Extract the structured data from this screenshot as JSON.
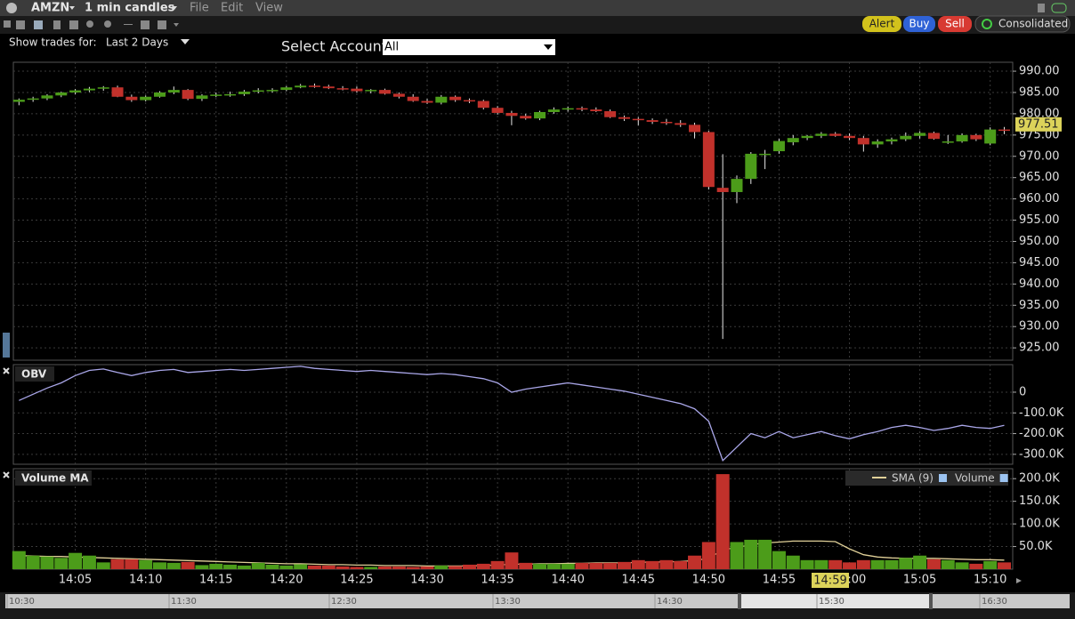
{
  "toolbar": {
    "symbol": "AMZN",
    "interval": "1 min candles",
    "menus": [
      "File",
      "Edit",
      "View"
    ],
    "buttons": [
      "Alert",
      "Buy",
      "Sell",
      "Consolidated"
    ]
  },
  "filters": {
    "show_trades_label": "Show trades for:",
    "show_trades_value": "Last 2 Days",
    "account_label": "Select Account",
    "account_value": "All"
  },
  "crosshair": {
    "time": "14:59"
  },
  "timeline": {
    "labels": [
      "10:30",
      "11:30",
      "12:30",
      "13:30",
      "14:30",
      "15:30",
      "16:30"
    ]
  },
  "chart_data": [
    {
      "type": "candlestick",
      "up_color": "#4c9c1a",
      "down_color": "#c1312b",
      "grid": true,
      "x": [
        841,
        842,
        843,
        844,
        845,
        846,
        847,
        848,
        849,
        850,
        851,
        852,
        853,
        854,
        855,
        856,
        857,
        858,
        859,
        860,
        861,
        862,
        863,
        864,
        865,
        866,
        867,
        868,
        869,
        870,
        871,
        872,
        873,
        874,
        875,
        876,
        877,
        878,
        879,
        880,
        881,
        882,
        883,
        884,
        885,
        886,
        887,
        888,
        889,
        890,
        891,
        892,
        893,
        894,
        895,
        896,
        897,
        898,
        899,
        900,
        901,
        902,
        903,
        904,
        905,
        906,
        907,
        908,
        909,
        910,
        911
      ],
      "open": [
        982.8,
        983.3,
        983.6,
        984.3,
        985.0,
        985.5,
        985.9,
        986.2,
        984.0,
        983.2,
        984.0,
        985.0,
        985.6,
        983.5,
        984.3,
        984.5,
        984.6,
        985.2,
        985.5,
        985.6,
        986.2,
        986.6,
        986.4,
        986.0,
        985.9,
        985.3,
        985.6,
        984.7,
        984.0,
        983.0,
        982.6,
        984.0,
        983.2,
        983.0,
        981.4,
        980.2,
        979.5,
        978.9,
        980.4,
        981.0,
        981.3,
        981.0,
        980.6,
        979.2,
        978.8,
        978.5,
        978.1,
        977.8,
        977.4,
        975.7,
        962.6,
        961.6,
        964.7,
        970.3,
        971.2,
        973.3,
        974.3,
        974.8,
        975.3,
        974.8,
        974.3,
        972.8,
        973.5,
        974.0,
        974.8,
        975.5,
        973.2,
        973.5,
        975.0,
        973.0,
        976.3
      ],
      "high": [
        983.6,
        984.0,
        984.6,
        985.2,
        985.8,
        986.3,
        986.5,
        986.6,
        984.5,
        984.3,
        985.3,
        986.4,
        985.8,
        984.6,
        985.0,
        985.2,
        985.6,
        986.0,
        986.0,
        986.5,
        987.0,
        987.1,
        986.8,
        986.5,
        986.4,
        985.8,
        985.9,
        985.0,
        984.6,
        983.5,
        984.4,
        984.3,
        983.6,
        983.3,
        981.8,
        980.7,
        980.0,
        980.7,
        981.5,
        981.7,
        981.7,
        981.5,
        981.0,
        979.6,
        979.2,
        978.9,
        978.8,
        978.5,
        977.9,
        976.0,
        970.5,
        965.5,
        971.0,
        971.5,
        974.1,
        975.0,
        975.0,
        975.7,
        975.7,
        975.4,
        974.8,
        974.0,
        974.4,
        975.6,
        975.9,
        975.8,
        975.0,
        975.4,
        975.3,
        976.8,
        976.9
      ],
      "low": [
        982.0,
        982.8,
        983.2,
        983.9,
        984.6,
        985.1,
        985.4,
        983.9,
        982.8,
        982.9,
        983.8,
        984.6,
        983.2,
        983.0,
        983.9,
        984.0,
        984.2,
        984.8,
        985.0,
        985.3,
        986.0,
        986.1,
        985.8,
        985.5,
        985.0,
        984.8,
        984.5,
        983.6,
        982.8,
        982.3,
        982.2,
        982.8,
        982.5,
        981.0,
        979.8,
        977.3,
        978.6,
        978.5,
        980.0,
        980.5,
        980.6,
        980.4,
        979.0,
        978.3,
        977.3,
        977.6,
        977.4,
        976.9,
        974.2,
        962.2,
        927.1,
        959.0,
        963.5,
        967.0,
        970.6,
        972.6,
        973.8,
        974.3,
        974.6,
        973.8,
        971.1,
        972.0,
        972.8,
        973.6,
        974.2,
        973.9,
        972.9,
        973.2,
        973.6,
        972.6,
        975.2
      ],
      "close": [
        983.3,
        983.6,
        984.3,
        985.0,
        985.5,
        985.9,
        986.2,
        984.0,
        983.2,
        984.0,
        985.0,
        985.6,
        983.5,
        984.3,
        984.5,
        984.6,
        985.2,
        985.5,
        985.6,
        986.2,
        986.6,
        986.4,
        986.0,
        985.9,
        985.3,
        985.6,
        984.7,
        984.0,
        983.0,
        982.6,
        984.0,
        983.2,
        983.0,
        981.4,
        980.2,
        979.5,
        978.9,
        980.4,
        981.0,
        981.3,
        981.0,
        980.6,
        979.2,
        978.8,
        978.5,
        978.1,
        977.8,
        977.4,
        975.7,
        962.8,
        961.6,
        964.7,
        970.6,
        970.6,
        973.6,
        974.3,
        974.8,
        975.3,
        974.8,
        974.3,
        972.8,
        973.5,
        974.0,
        974.8,
        975.5,
        974.1,
        973.5,
        975.0,
        974.0,
        976.3,
        976.0
      ],
      "last_price": 977.51,
      "xlim": [
        840.6,
        911.6
      ],
      "xticks": [
        {
          "value": 845,
          "label": "14:05"
        },
        {
          "value": 850,
          "label": "14:10"
        },
        {
          "value": 855,
          "label": "14:15"
        },
        {
          "value": 860,
          "label": "14:20"
        },
        {
          "value": 865,
          "label": "14:25"
        },
        {
          "value": 870,
          "label": "14:30"
        },
        {
          "value": 875,
          "label": "14:35"
        },
        {
          "value": 880,
          "label": "14:40"
        },
        {
          "value": 885,
          "label": "14:45"
        },
        {
          "value": 890,
          "label": "14:50"
        },
        {
          "value": 895,
          "label": "14:55"
        },
        {
          "value": 900,
          "label": "15:00"
        },
        {
          "value": 905,
          "label": "15:05"
        },
        {
          "value": 910,
          "label": "15:10"
        }
      ],
      "ylim": [
        922.1,
        992.1
      ],
      "yticks": [
        {
          "value": 925,
          "label": "925.00"
        },
        {
          "value": 930,
          "label": "930.00"
        },
        {
          "value": 935,
          "label": "935.00"
        },
        {
          "value": 940,
          "label": "940.00"
        },
        {
          "value": 945,
          "label": "945.00"
        },
        {
          "value": 950,
          "label": "950.00"
        },
        {
          "value": 955,
          "label": "955.00"
        },
        {
          "value": 960,
          "label": "960.00"
        },
        {
          "value": 965,
          "label": "965.00"
        },
        {
          "value": 970,
          "label": "970.00"
        },
        {
          "value": 975,
          "label": "975.00"
        },
        {
          "value": 980,
          "label": "980.00"
        },
        {
          "value": 985,
          "label": "985.00"
        },
        {
          "value": 990,
          "label": "990.00"
        }
      ]
    },
    {
      "type": "line",
      "title": "OBV",
      "grid": true,
      "series": [
        {
          "color": "#a9a6e8",
          "values": [
            -40000,
            -10000,
            20000,
            45000,
            80000,
            105000,
            112000,
            95000,
            80000,
            95000,
            105000,
            110000,
            95000,
            100000,
            105000,
            110000,
            105000,
            110000,
            115000,
            120000,
            125000,
            115000,
            110000,
            105000,
            100000,
            105000,
            100000,
            95000,
            90000,
            85000,
            90000,
            85000,
            75000,
            65000,
            45000,
            0,
            15000,
            25000,
            35000,
            45000,
            35000,
            25000,
            15000,
            5000,
            -10000,
            -25000,
            -40000,
            -55000,
            -80000,
            -140000,
            -330000,
            -265000,
            -200000,
            -220000,
            -190000,
            -220000,
            -205000,
            -190000,
            -210000,
            -225000,
            -205000,
            -190000,
            -170000,
            -160000,
            -170000,
            -185000,
            -175000,
            -160000,
            -170000,
            -175000,
            -160000
          ]
        }
      ],
      "ylim": [
        -348000,
        133000
      ],
      "yticks": [
        0,
        {
          "value": -100000,
          "label": "-100.0K"
        },
        {
          "value": -200000,
          "label": "-200.0K"
        },
        {
          "value": -300000,
          "label": "-300.0K"
        }
      ]
    },
    {
      "type": "bar",
      "title": "Volume MA",
      "grid": true,
      "series": [
        {
          "name": "SMA (9)",
          "type": "line",
          "color": "#e0d098",
          "values": [
            30000,
            29000,
            28000,
            28000,
            27000,
            26000,
            25000,
            24000,
            23000,
            22000,
            21000,
            20000,
            19000,
            18000,
            17000,
            16000,
            15000,
            14000,
            13000,
            12000,
            12000,
            11000,
            10000,
            10000,
            9000,
            9000,
            8000,
            8000,
            8000,
            7000,
            7000,
            7000,
            7000,
            8000,
            9000,
            11000,
            11000,
            12000,
            12000,
            13000,
            13000,
            14000,
            14000,
            14000,
            15000,
            16000,
            16000,
            17000,
            19000,
            24000,
            43000,
            48000,
            54000,
            58000,
            60000,
            62000,
            62000,
            62000,
            61000,
            45000,
            32000,
            27000,
            25000,
            24000,
            24000,
            24000,
            23000,
            22000,
            21000,
            21000,
            20000
          ]
        },
        {
          "name": "Volume",
          "type": "bar",
          "values": [
            40000,
            30000,
            28000,
            25000,
            36000,
            30000,
            15000,
            22000,
            22000,
            20000,
            15000,
            14000,
            16000,
            9000,
            12000,
            10000,
            8000,
            14000,
            10000,
            8000,
            11000,
            8000,
            8000,
            6000,
            5000,
            5000,
            6000,
            6000,
            5000,
            6000,
            8000,
            7000,
            10000,
            12000,
            18000,
            37000,
            14000,
            12000,
            12000,
            12000,
            14000,
            14000,
            14000,
            16000,
            20000,
            18000,
            20000,
            18000,
            30000,
            60000,
            210000,
            60000,
            65000,
            65000,
            40000,
            30000,
            20000,
            20000,
            20000,
            15000,
            20000,
            20000,
            20000,
            25000,
            30000,
            22000,
            20000,
            15000,
            12000,
            18000,
            15000
          ]
        }
      ],
      "ylim": [
        0,
        222000
      ],
      "yticks": [
        {
          "value": 50000,
          "label": "50.0K"
        },
        {
          "value": 100000,
          "label": "100.0K"
        },
        {
          "value": 150000,
          "label": "150.0K"
        },
        {
          "value": 200000,
          "label": "200.0K"
        }
      ]
    }
  ]
}
